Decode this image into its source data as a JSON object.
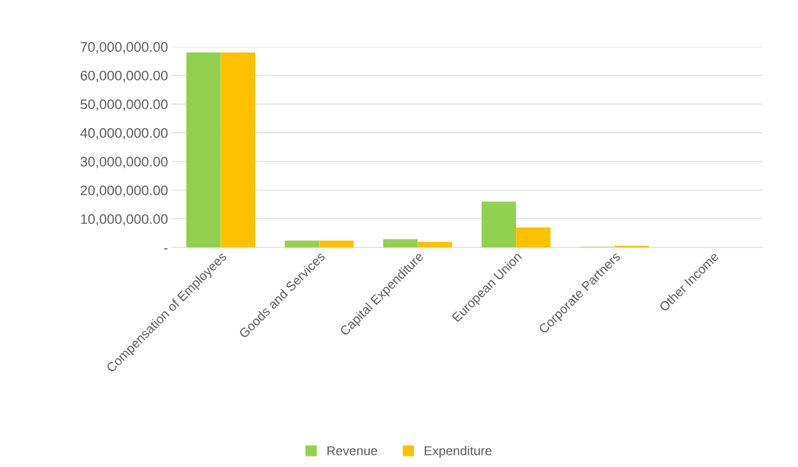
{
  "chart_data": {
    "type": "bar",
    "categories": [
      "Compensation of Employees",
      "Goods and Services",
      "Capital Expenditure",
      "European Union",
      "Corporate Partners",
      "Other Income"
    ],
    "series": [
      {
        "name": "Revenue",
        "color": "#92d050",
        "values": [
          68000000,
          2400000,
          2900000,
          16000000,
          200000,
          0
        ]
      },
      {
        "name": "Expenditure",
        "color": "#ffc000",
        "values": [
          68000000,
          2400000,
          2000000,
          7000000,
          600000,
          0
        ]
      }
    ],
    "ylim": [
      0,
      70000000
    ],
    "yticks": [
      {
        "value": 0,
        "label": "-"
      },
      {
        "value": 10000000,
        "label": "10,000,000.00"
      },
      {
        "value": 20000000,
        "label": "20,000,000.00"
      },
      {
        "value": 30000000,
        "label": "30,000,000.00"
      },
      {
        "value": 40000000,
        "label": "40,000,000.00"
      },
      {
        "value": 50000000,
        "label": "50,000,000.00"
      },
      {
        "value": 60000000,
        "label": "60,000,000.00"
      },
      {
        "value": 70000000,
        "label": "70,000,000.00"
      }
    ],
    "grid": "y",
    "legend": "bottom"
  }
}
